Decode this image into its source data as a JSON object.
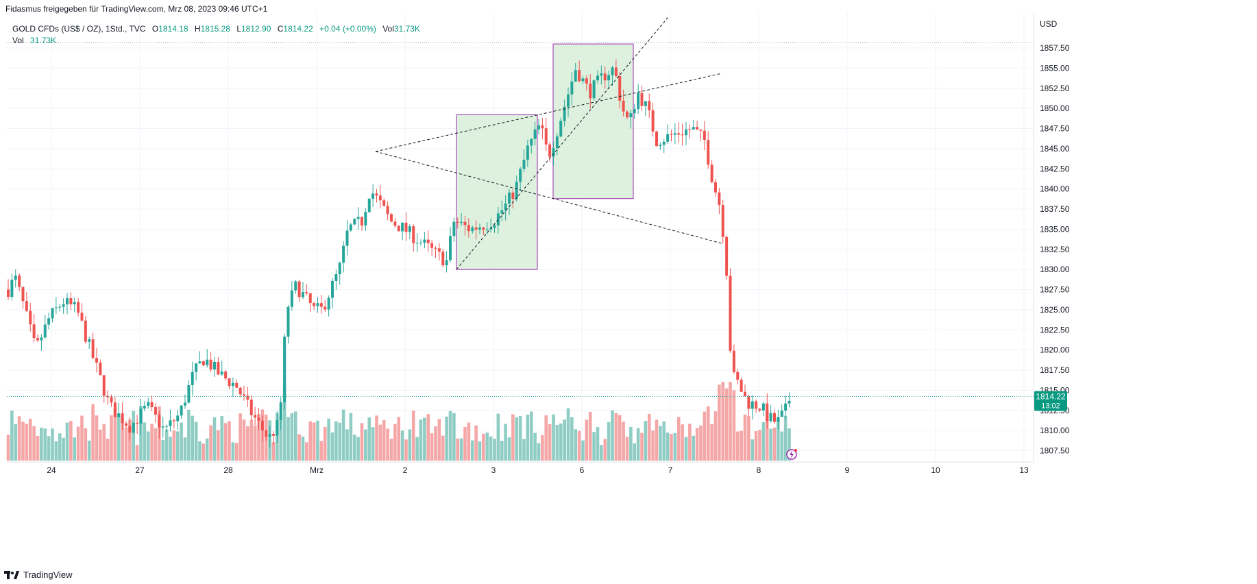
{
  "caption": "Fidasmus freigegeben für TradingView.com, Mrz 08, 2023 09:46 UTC+1",
  "legend": {
    "symbol": "GOLD CFDs (US$ / OZ), 1Std., TVC",
    "open_label": "O",
    "open": "1814.18",
    "high_label": "H",
    "high": "1815.28",
    "low_label": "L",
    "low": "1812.90",
    "close_label": "C",
    "close": "1814.22",
    "change": "+0.04 (+0.00%)",
    "vol_label": "Vol",
    "vol": "31.73K",
    "vol2_label": "Vol",
    "vol2": "31.73K"
  },
  "currency": "USD",
  "price_tag": {
    "price": "1814.22",
    "countdown": "13:02"
  },
  "footer": {
    "brand": "TradingView",
    "icon": "tradingview-logo-icon"
  },
  "colors": {
    "up": "#26a69a",
    "down": "#ef5350",
    "up_vol": "#8fcdc4",
    "down_vol": "#f5a6a6",
    "rect_fill": "#d8eed8",
    "rect_stroke": "#9c27b0",
    "price_line": "#26a69a"
  },
  "chart_data": {
    "type": "candlestick",
    "y_ticks": [
      "1857.50",
      "1855.00",
      "1852.50",
      "1850.00",
      "1847.50",
      "1845.00",
      "1842.50",
      "1840.00",
      "1837.50",
      "1835.00",
      "1832.50",
      "1830.00",
      "1827.50",
      "1825.00",
      "1822.50",
      "1820.00",
      "1817.50",
      "1815.00",
      "1812.50",
      "1810.00",
      "1807.50"
    ],
    "ylim": [
      1806.0,
      1860.5
    ],
    "x_ticks": [
      "24",
      "27",
      "28",
      "Mrz",
      "2",
      "3",
      "6",
      "7",
      "8",
      "9",
      "10",
      "13"
    ],
    "last_price": 1814.22,
    "grid": true,
    "annotations": [
      {
        "type": "rectangle",
        "x_start": "2 Mrz 16:00",
        "x_end": "3 Mrz 13:00",
        "y_range": [
          1830.0,
          1849.2
        ]
      },
      {
        "type": "rectangle",
        "x_start": "3 Mrz 15:00",
        "x_end": "6 Mrz 12:00",
        "y_range": [
          1838.8,
          1858.0
        ]
      },
      {
        "type": "dashed-line",
        "note": "upper line of first wedge",
        "from": [
          1844.5
        ],
        "to": [
          1854.5
        ]
      },
      {
        "type": "dashed-line",
        "note": "lower line of first wedge",
        "from": [
          1844.5
        ],
        "to": [
          1833.0
        ]
      },
      {
        "type": "dashed-line",
        "note": "rising channel line",
        "from": [
          1830.0
        ],
        "to": [
          1855.0
        ]
      }
    ]
  }
}
